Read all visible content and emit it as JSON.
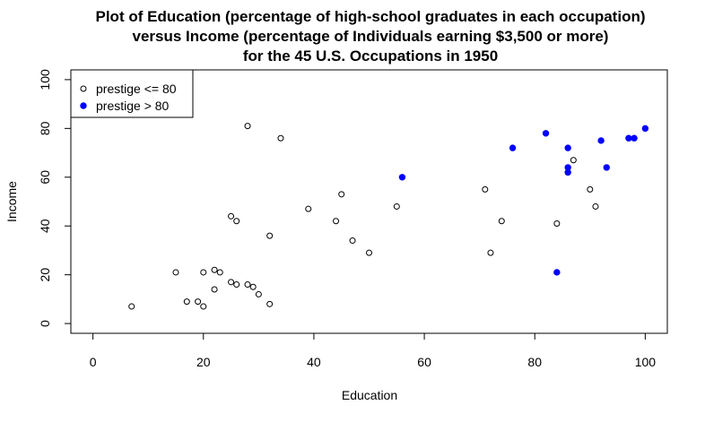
{
  "chart_data": {
    "type": "scatter",
    "title": [
      "Plot of Education (percentage of high-school graduates in each occupation)",
      "versus Income (percentage of Individuals earning $3,500 or more)",
      "for the 45 U.S. Occupations in 1950"
    ],
    "xlabel": "Education",
    "ylabel": "Income",
    "xlim": [
      -4,
      104
    ],
    "ylim": [
      -4,
      104
    ],
    "xticks": [
      0,
      20,
      40,
      60,
      80,
      100
    ],
    "yticks": [
      0,
      20,
      40,
      60,
      80,
      100
    ],
    "grid": false,
    "legend_position": "top-left",
    "series": [
      {
        "name": "prestige <= 80",
        "marker": "open-circle",
        "color": "#000000",
        "points": [
          [
            7,
            7
          ],
          [
            15,
            21
          ],
          [
            17,
            9
          ],
          [
            19,
            9
          ],
          [
            20,
            21
          ],
          [
            20,
            7
          ],
          [
            22,
            22
          ],
          [
            22,
            14
          ],
          [
            23,
            21
          ],
          [
            25,
            44
          ],
          [
            25,
            17
          ],
          [
            26,
            42
          ],
          [
            26,
            16
          ],
          [
            28,
            81
          ],
          [
            28,
            16
          ],
          [
            29,
            15
          ],
          [
            30,
            12
          ],
          [
            32,
            36
          ],
          [
            32,
            8
          ],
          [
            34,
            76
          ],
          [
            39,
            47
          ],
          [
            44,
            42
          ],
          [
            45,
            53
          ],
          [
            47,
            34
          ],
          [
            50,
            29
          ],
          [
            55,
            48
          ],
          [
            71,
            55
          ],
          [
            72,
            29
          ],
          [
            74,
            42
          ],
          [
            84,
            41
          ],
          [
            87,
            67
          ],
          [
            90,
            55
          ],
          [
            91,
            48
          ]
        ]
      },
      {
        "name": "prestige > 80",
        "marker": "filled-circle",
        "color": "#0000ff",
        "points": [
          [
            56,
            60
          ],
          [
            76,
            72
          ],
          [
            82,
            78
          ],
          [
            84,
            21
          ],
          [
            86,
            72
          ],
          [
            86,
            64
          ],
          [
            86,
            62
          ],
          [
            92,
            75
          ],
          [
            93,
            64
          ],
          [
            97,
            76
          ],
          [
            98,
            76
          ],
          [
            100,
            80
          ]
        ]
      }
    ]
  }
}
